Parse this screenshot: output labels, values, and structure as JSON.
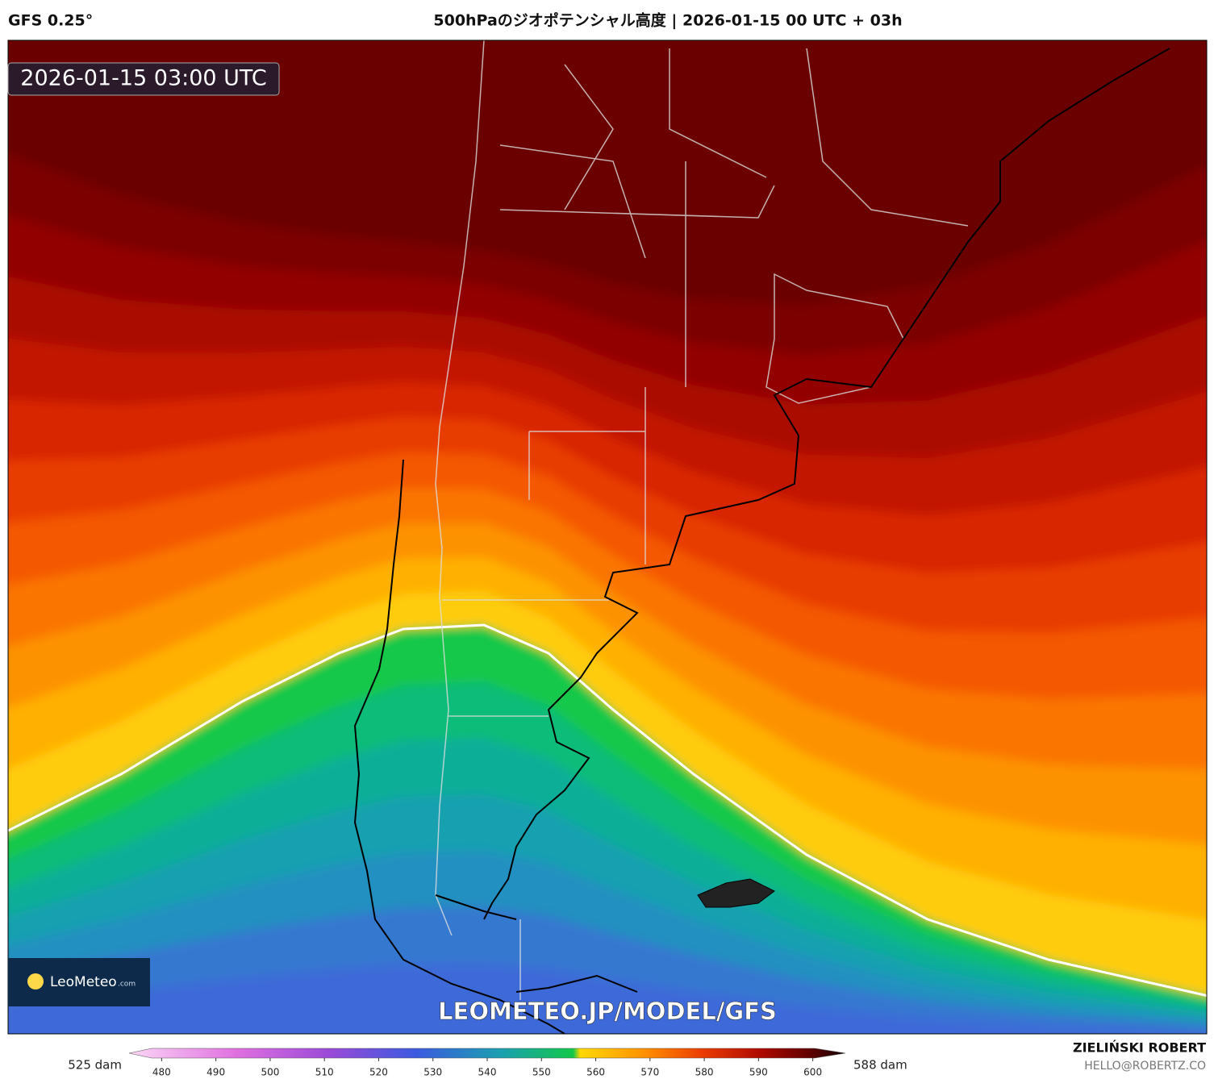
{
  "header": {
    "model": "GFS 0.25°",
    "title": "500hPaのジオポテンシャル高度 | 2026-01-15 00 UTC + 03h"
  },
  "map": {
    "timestamp": "2026-01-15 03:00 UTC",
    "watermark": "LEOMETEO.JP/MODEL/GFS"
  },
  "logo": {
    "name": "LeoMeteo",
    "suffix": ".com"
  },
  "colorbar": {
    "min_label": "525 dam",
    "max_label": "588 dam",
    "lim": [
      474,
      606
    ],
    "ticks": [
      480,
      490,
      500,
      510,
      520,
      530,
      540,
      550,
      560,
      570,
      580,
      590,
      600
    ]
  },
  "footer": {
    "author": "ZIELIŃSKI ROBERT",
    "email": "HELLO@ROBERTZ.CO"
  }
}
